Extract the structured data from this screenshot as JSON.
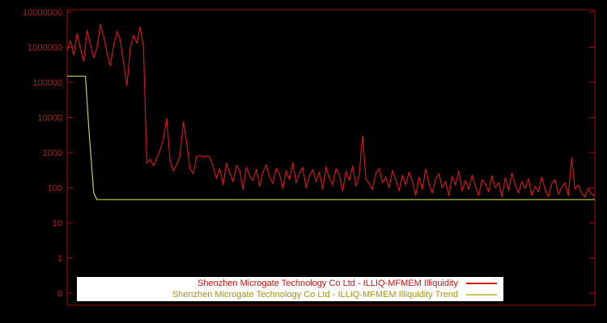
{
  "chart_data": {
    "type": "line",
    "title": "",
    "yscale": "log",
    "ylim": [
      0.1,
      10000000
    ],
    "grid": false,
    "xlabel": "",
    "ylabel": "",
    "xticks": [],
    "yticks": [
      {
        "label": "10000000",
        "value": 10000000
      },
      {
        "label": "1000000",
        "value": 1000000
      },
      {
        "label": "100000",
        "value": 100000
      },
      {
        "label": "10000",
        "value": 10000
      },
      {
        "label": "1000",
        "value": 1000
      },
      {
        "label": "100",
        "value": 100
      },
      {
        "label": "10",
        "value": 10
      },
      {
        "label": "1",
        "value": 1
      },
      {
        "label": "0",
        "value": 0.1
      }
    ],
    "colors": {
      "background": "#000000",
      "axis": "#a01212",
      "tick_text": "#cc1414",
      "legend_bg": "#ffffff"
    },
    "legend": {
      "position": "bottom-center",
      "text_colors": [
        "#cc1414",
        "#a89410"
      ]
    },
    "series": [
      {
        "name": "Shenzhen Microgate Technology Co Ltd - ILLIQ-MFMEM Illiquidity",
        "color": "#d01818",
        "values": [
          800000,
          1500000,
          600000,
          2500000,
          900000,
          400000,
          3000000,
          1200000,
          500000,
          1000000,
          4500000,
          2000000,
          700000,
          300000,
          1100000,
          2800000,
          1600000,
          350000,
          80000,
          900000,
          2200000,
          1300000,
          3800000,
          1000000,
          500,
          650,
          420,
          700,
          1200,
          2500,
          9500,
          600,
          300,
          450,
          800,
          7500,
          2000,
          350,
          250,
          780,
          820,
          760,
          800,
          750,
          400,
          180,
          350,
          120,
          500,
          260,
          150,
          430,
          300,
          90,
          380,
          220,
          160,
          340,
          110,
          280,
          450,
          200,
          130,
          360,
          240,
          95,
          310,
          170,
          520,
          140,
          260,
          380,
          100,
          220,
          330,
          150,
          280,
          90,
          400,
          190,
          120,
          350,
          230,
          80,
          300,
          160,
          420,
          110,
          240,
          3000,
          180,
          130,
          90,
          260,
          350,
          140,
          200,
          100,
          310,
          170,
          80,
          230,
          120,
          280,
          150,
          60,
          200,
          90,
          340,
          130,
          70,
          180,
          250,
          100,
          150,
          60,
          210,
          120,
          300,
          80,
          160,
          90,
          230,
          110,
          60,
          170,
          130,
          75,
          220,
          100,
          140,
          55,
          190,
          85,
          260,
          120,
          70,
          150,
          95,
          180,
          60,
          110,
          75,
          200,
          90,
          55,
          130,
          170,
          65,
          100,
          140,
          60,
          700,
          90,
          120,
          70,
          55,
          95,
          65,
          60
        ]
      },
      {
        "name": "Shenzhen Microgate Technology Co Ltd - ILLIQ-MFMEM Illiquidity Trend",
        "color": "#c9c955",
        "points": [
          [
            0,
            150000
          ],
          [
            5.5,
            150000
          ],
          [
            6.5,
            5000
          ],
          [
            8,
            70
          ],
          [
            9,
            46
          ],
          [
            159,
            46
          ]
        ]
      }
    ]
  }
}
